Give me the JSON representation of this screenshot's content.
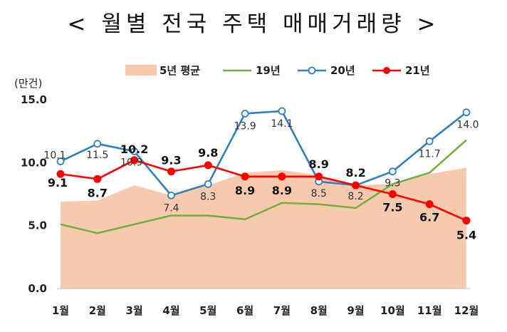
{
  "title": "< 월별 전국 주택 매매거래량 >",
  "chart_data": {
    "type": "line",
    "unit_label": "(만건)",
    "categories": [
      "1월",
      "2월",
      "3월",
      "4월",
      "5월",
      "6월",
      "7월",
      "8월",
      "9월",
      "10월",
      "11월",
      "12월"
    ],
    "y_ticks": [
      "0.0",
      "5.0",
      "10.0",
      "15.0"
    ],
    "ylim": [
      0,
      15
    ],
    "legend_position": "top",
    "series": [
      {
        "name": "5년 평균",
        "kind": "area",
        "color": "#f7c9ad",
        "values": [
          6.9,
          7.0,
          8.2,
          7.4,
          8.2,
          9.2,
          9.4,
          9.0,
          8.2,
          8.3,
          9.1,
          9.6
        ]
      },
      {
        "name": "19년",
        "kind": "line",
        "color": "#72b043",
        "values": [
          5.1,
          4.4,
          5.1,
          5.8,
          5.8,
          5.5,
          6.8,
          6.7,
          6.4,
          8.3,
          9.2,
          11.8
        ]
      },
      {
        "name": "20년",
        "kind": "line-marker-open",
        "color": "#2e7fc4",
        "values": [
          10.1,
          11.5,
          10.9,
          7.4,
          8.3,
          13.9,
          14.1,
          8.5,
          8.2,
          9.3,
          11.7,
          14.0
        ],
        "labels": [
          "10.1",
          "11.5",
          "10.9",
          "7.4",
          "8.3",
          "13.9",
          "14.1",
          "8.5",
          "8.2",
          "9.3",
          "11.7",
          "14.0"
        ]
      },
      {
        "name": "21년",
        "kind": "line-marker-filled",
        "color": "#ff0000",
        "values": [
          9.1,
          8.7,
          10.2,
          9.3,
          9.8,
          8.9,
          8.9,
          8.9,
          8.2,
          7.5,
          6.7,
          5.4
        ],
        "labels": [
          "9.1",
          "8.7",
          "10.2",
          "9.3",
          "9.8",
          "8.9",
          "8.9",
          "8.9",
          "8.2",
          "7.5",
          "6.7",
          "5.4"
        ]
      }
    ]
  }
}
